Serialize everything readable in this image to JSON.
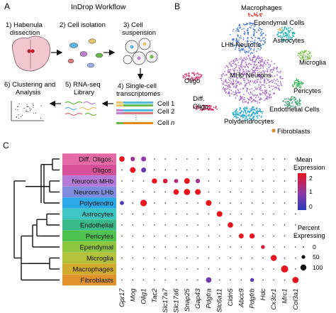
{
  "panels": {
    "A": {
      "letter": "A",
      "title": "InDrop Workflow",
      "steps": {
        "s1": [
          "1) Habenula",
          "dissection"
        ],
        "s2": [
          "2) Cell isolation"
        ],
        "s3": [
          "3) Cell",
          "suspension"
        ],
        "s4": [
          "4) Single-cell",
          "transcriptomes"
        ],
        "s5": [
          "5) RNA-seq",
          "Library"
        ],
        "s6": [
          "6) Clustering and",
          "Analysis"
        ]
      },
      "cells": [
        "Cell 1",
        "Cell 2",
        "Cell "
      ],
      "cell_n": "n",
      "colors": {
        "brain": "#f2c7cf",
        "brain_stroke": "#7a5560",
        "accent": "#c01a2a",
        "dot_cell": "#e2c9a6"
      }
    },
    "B": {
      "letter": "B",
      "clusters": [
        {
          "name": "Macrophages",
          "color": "#e83a3a"
        },
        {
          "name": "Ependymal Cells",
          "color": "#e0a020"
        },
        {
          "name": "Astrocytes",
          "color": "#20b8b0"
        },
        {
          "name": "LHb Neurons",
          "color": "#4a7ad6"
        },
        {
          "name": "Microglia",
          "color": "#7ac24a"
        },
        {
          "name": "MHb Neurons",
          "color": "#a86acc"
        },
        {
          "name": "Pericytes",
          "color": "#3ab85a"
        },
        {
          "name": "Oligo",
          "color": "#d8407a"
        },
        {
          "name": "Diff. Oligo",
          "color": "#c83060"
        },
        {
          "name": "Endothelial Cells",
          "color": "#3aa070"
        },
        {
          "name": "Polydendrocytes",
          "color": "#20a8d0"
        },
        {
          "name": "Fibroblasts",
          "color": "#e08a20"
        }
      ]
    },
    "C": {
      "letter": "C",
      "rows": [
        {
          "label": "Diff. Oligos.",
          "color": "#e46aa6"
        },
        {
          "label": "Oligos.",
          "color": "#d6519a"
        },
        {
          "label": "Neurons MHb",
          "color": "#b47ad6"
        },
        {
          "label": "Neurons LHb",
          "color": "#7f8bde"
        },
        {
          "label": "Polydendro",
          "color": "#2aa8e8"
        },
        {
          "label": "Astrocytes",
          "color": "#3dc6c4"
        },
        {
          "label": "Endothelial",
          "color": "#3ab98a"
        },
        {
          "label": "Pericytes",
          "color": "#4fc24f"
        },
        {
          "label": "Ependymal",
          "color": "#8ec63f"
        },
        {
          "label": "Microglia",
          "color": "#b3c43a"
        },
        {
          "label": "Macrophages",
          "color": "#d1ab2e"
        },
        {
          "label": "Fibroblasts",
          "color": "#e0922d"
        }
      ],
      "genes": [
        "Gpr17",
        "Mog",
        "Olig1",
        "Tac2",
        "Slc17a7",
        "Slc17a6",
        "Snap25",
        "Gap43",
        "Pdgfra",
        "Slc6a11",
        "Cldn5",
        "Abcc9",
        "Pdgfrb",
        "Hdc",
        "Cx3cr1",
        "Mrc1",
        "Col3a1"
      ],
      "legend": {
        "mean_title": [
          "Mean",
          "Expression"
        ],
        "mean_ticks": [
          "2",
          "1",
          "0"
        ],
        "pct_title": [
          "Percent",
          "Expressing"
        ],
        "pct_ticks": [
          "0",
          "50",
          "100"
        ]
      }
    }
  },
  "chart_data": {
    "type": "dotplot",
    "rows": [
      "Diff. Oligos.",
      "Oligos.",
      "Neurons MHb",
      "Neurons LHb",
      "Polydendro",
      "Astrocytes",
      "Endothelial",
      "Pericytes",
      "Ependymal",
      "Microglia",
      "Macrophages",
      "Fibroblasts"
    ],
    "columns": [
      "Gpr17",
      "Mog",
      "Olig1",
      "Tac2",
      "Slc17a7",
      "Slc17a6",
      "Snap25",
      "Gap43",
      "Pdgfra",
      "Slc6a11",
      "Cldn5",
      "Abcc9",
      "Pdgfrb",
      "Hdc",
      "Cx3cr1",
      "Mrc1",
      "Col3a1"
    ],
    "color_range": [
      0,
      2
    ],
    "size_range": [
      0,
      100
    ],
    "highlights": [
      {
        "row": "Diff. Oligos.",
        "col": "Gpr17",
        "expr": 2.2,
        "pct": 70
      },
      {
        "row": "Diff. Oligos.",
        "col": "Mog",
        "expr": 1.2,
        "pct": 50
      },
      {
        "row": "Diff. Oligos.",
        "col": "Olig1",
        "expr": 1.0,
        "pct": 60
      },
      {
        "row": "Oligos.",
        "col": "Mog",
        "expr": 2.4,
        "pct": 75
      },
      {
        "row": "Oligos.",
        "col": "Olig1",
        "expr": 0.6,
        "pct": 60
      },
      {
        "row": "Neurons MHb",
        "col": "Tac2",
        "expr": 2.3,
        "pct": 65
      },
      {
        "row": "Neurons MHb",
        "col": "Slc17a7",
        "expr": 1.8,
        "pct": 55
      },
      {
        "row": "Neurons MHb",
        "col": "Slc17a6",
        "expr": 1.4,
        "pct": 45
      },
      {
        "row": "Neurons MHb",
        "col": "Snap25",
        "expr": 2.0,
        "pct": 75
      },
      {
        "row": "Neurons MHb",
        "col": "Gap43",
        "expr": 1.2,
        "pct": 50
      },
      {
        "row": "Neurons LHb",
        "col": "Slc17a6",
        "expr": 2.1,
        "pct": 70
      },
      {
        "row": "Neurons LHb",
        "col": "Snap25",
        "expr": 2.2,
        "pct": 85
      },
      {
        "row": "Neurons LHb",
        "col": "Gap43",
        "expr": 2.0,
        "pct": 75
      },
      {
        "row": "Polydendro",
        "col": "Gpr17",
        "expr": 0.4,
        "pct": 45
      },
      {
        "row": "Polydendro",
        "col": "Olig1",
        "expr": 2.0,
        "pct": 90
      },
      {
        "row": "Polydendro",
        "col": "Pdgfra",
        "expr": 2.2,
        "pct": 75
      },
      {
        "row": "Astrocytes",
        "col": "Slc6a11",
        "expr": 2.2,
        "pct": 75
      },
      {
        "row": "Endothelial",
        "col": "Cldn5",
        "expr": 2.2,
        "pct": 70
      },
      {
        "row": "Pericytes",
        "col": "Abcc9",
        "expr": 2.0,
        "pct": 60
      },
      {
        "row": "Pericytes",
        "col": "Pdgfrb",
        "expr": 2.1,
        "pct": 65
      },
      {
        "row": "Ependymal",
        "col": "Hdc",
        "expr": 1.8,
        "pct": 40
      },
      {
        "row": "Microglia",
        "col": "Cx3cr1",
        "expr": 2.3,
        "pct": 80
      },
      {
        "row": "Macrophages",
        "col": "Mrc1",
        "expr": 2.5,
        "pct": 100
      },
      {
        "row": "Fibroblasts",
        "col": "Pdgfra",
        "expr": 0.7,
        "pct": 70
      },
      {
        "row": "Fibroblasts",
        "col": "Pdgfrb",
        "expr": 0.5,
        "pct": 40
      },
      {
        "row": "Fibroblasts",
        "col": "Col3a1",
        "expr": 2.4,
        "pct": 85
      }
    ]
  }
}
